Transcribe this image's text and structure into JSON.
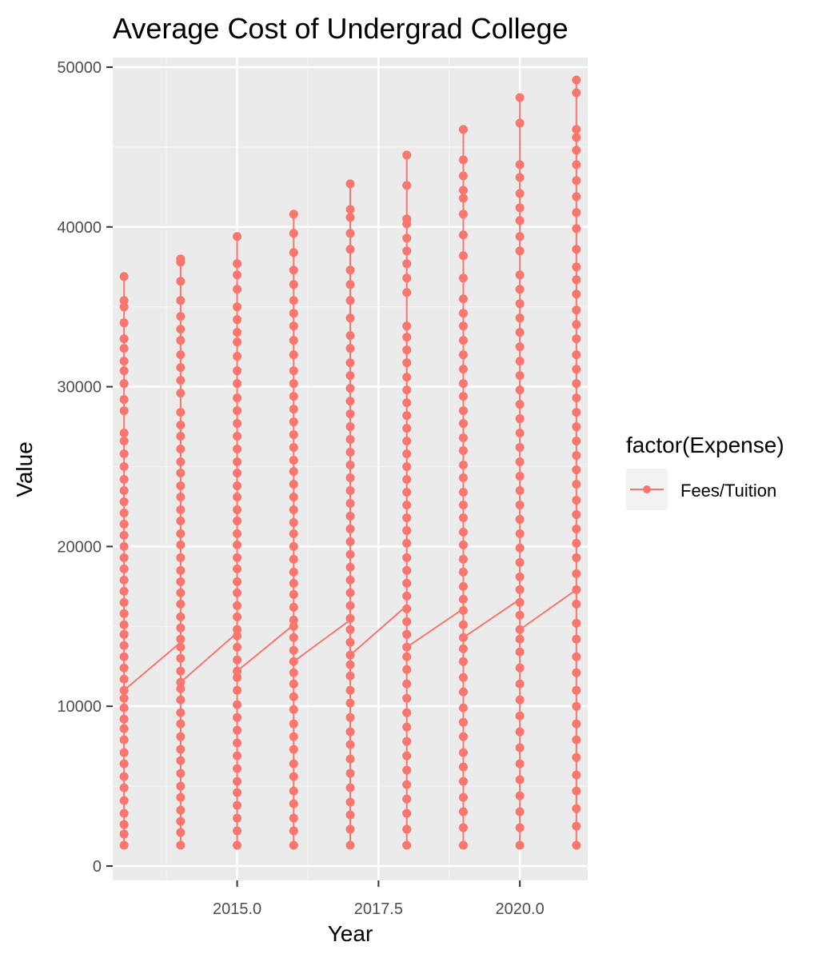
{
  "chart_data": {
    "type": "line",
    "title": "Average Cost of Undergrad College",
    "xlabel": "Year",
    "ylabel": "Value",
    "xlim": [
      2012.8,
      2021.2
    ],
    "ylim": [
      -900,
      50600
    ],
    "x_ticks": [
      2015.0,
      2017.5,
      2020.0
    ],
    "x_tick_labels": [
      "2015.0",
      "2017.5",
      "2020.0"
    ],
    "y_ticks": [
      0,
      10000,
      20000,
      30000,
      40000,
      50000
    ],
    "y_tick_labels": [
      "0",
      "10000",
      "20000",
      "30000",
      "40000",
      "50000"
    ],
    "grid": true,
    "legend": {
      "title": "factor(Expense)",
      "position": "right"
    },
    "series": [
      {
        "name": "Fees/Tuition",
        "color": "#F8766D",
        "x": [
          2013,
          2014,
          2015,
          2016,
          2017,
          2018,
          2019,
          2020,
          2021
        ],
        "min": [
          1300,
          1300,
          1300,
          1300,
          1300,
          1300,
          1300,
          1300,
          1300
        ],
        "max": [
          36900,
          38000,
          39400,
          40800,
          42700,
          44500,
          46100,
          48100,
          49200
        ],
        "connector_start": [
          11000,
          11500,
          12200,
          12800,
          13200,
          13700,
          14300,
          14800,
          17300
        ],
        "connector_end": [
          14000,
          14600,
          15100,
          15400,
          16300,
          16100,
          16700,
          17300,
          17300
        ],
        "points": [
          [
            1300,
            2000,
            2600,
            3300,
            4100,
            4900,
            5600,
            6400,
            7100,
            7900,
            8600,
            9200,
            9900,
            10500,
            11000,
            11700,
            12400,
            13100,
            13800,
            14500,
            15100,
            15800,
            16500,
            17200,
            17900,
            18600,
            19300,
            20000,
            20700,
            21400,
            22100,
            22800,
            23500,
            24200,
            25000,
            25800,
            26600,
            27100,
            28500,
            29200,
            30200,
            31000,
            31600,
            32400,
            33000,
            34000,
            35000,
            35400,
            36900
          ],
          [
            1300,
            2100,
            2800,
            3500,
            4300,
            5000,
            5800,
            6600,
            7300,
            8100,
            8900,
            9600,
            10400,
            11100,
            11500,
            12200,
            13000,
            13700,
            14200,
            14900,
            15600,
            16400,
            17100,
            17800,
            18500,
            19300,
            20100,
            20800,
            21600,
            22300,
            23100,
            23800,
            24600,
            25300,
            26100,
            26900,
            27600,
            28400,
            29600,
            30400,
            31200,
            32000,
            32900,
            33600,
            34400,
            35400,
            36600,
            37800,
            38000
          ],
          [
            1300,
            2200,
            3000,
            3800,
            4600,
            5300,
            6100,
            6900,
            7700,
            8500,
            9300,
            10100,
            11000,
            11800,
            12200,
            12900,
            13700,
            14400,
            14800,
            15600,
            16300,
            17100,
            17800,
            18600,
            19300,
            20100,
            20800,
            21600,
            22300,
            23100,
            23800,
            24600,
            25300,
            26100,
            26900,
            27700,
            28500,
            29300,
            30200,
            31000,
            31900,
            32800,
            33400,
            34200,
            35000,
            36100,
            37000,
            37700,
            39400
          ],
          [
            1300,
            2200,
            3000,
            3900,
            4700,
            5600,
            6400,
            7300,
            8100,
            8900,
            9800,
            10600,
            11400,
            12100,
            12800,
            13500,
            14300,
            15000,
            15400,
            16200,
            17000,
            17700,
            18400,
            19200,
            20000,
            20800,
            21500,
            22300,
            23100,
            23900,
            24700,
            25400,
            26200,
            27000,
            27800,
            28600,
            29400,
            30200,
            31000,
            32000,
            32900,
            33800,
            34600,
            35400,
            36400,
            37300,
            38400,
            39600,
            40800
          ],
          [
            1300,
            2300,
            3200,
            4000,
            4900,
            5800,
            6700,
            7600,
            8400,
            9300,
            10200,
            11000,
            11900,
            12600,
            13200,
            14000,
            14800,
            15500,
            16300,
            17100,
            17900,
            18700,
            19500,
            20300,
            21100,
            21900,
            22700,
            23500,
            24300,
            25100,
            25900,
            26700,
            27500,
            28300,
            29100,
            29900,
            30700,
            31500,
            32400,
            33200,
            34300,
            35400,
            36400,
            37300,
            38600,
            39600,
            40600,
            41100,
            42700
          ],
          [
            1300,
            2300,
            3300,
            4200,
            5100,
            6000,
            6900,
            7800,
            8700,
            9600,
            10500,
            11400,
            12300,
            13100,
            13700,
            14500,
            15300,
            16100,
            16900,
            17700,
            18500,
            19300,
            20200,
            21000,
            21800,
            22600,
            23400,
            24200,
            25000,
            25800,
            26600,
            27400,
            28200,
            29000,
            29800,
            30600,
            31500,
            32300,
            33100,
            33800,
            35900,
            36800,
            37700,
            38500,
            39300,
            40200,
            40500,
            42600,
            44500
          ],
          [
            1300,
            2400,
            3400,
            4300,
            5300,
            6200,
            7100,
            8100,
            9000,
            9900,
            10900,
            11800,
            12800,
            13600,
            14300,
            15100,
            16000,
            16700,
            17500,
            18400,
            19200,
            20100,
            20900,
            21800,
            22600,
            23400,
            24300,
            25100,
            26000,
            26800,
            27700,
            28500,
            29400,
            30200,
            31100,
            32000,
            32900,
            33800,
            34600,
            35500,
            36800,
            38200,
            39500,
            40800,
            41800,
            42300,
            43200,
            44200,
            46100
          ],
          [
            1300,
            2400,
            3400,
            4400,
            5400,
            6400,
            7400,
            8400,
            9400,
            10400,
            11400,
            12400,
            13400,
            14200,
            14800,
            15700,
            16500,
            17300,
            18100,
            19000,
            19900,
            20800,
            21700,
            22600,
            23500,
            24400,
            25300,
            26200,
            27100,
            28000,
            28900,
            29800,
            30700,
            31600,
            32500,
            33400,
            34300,
            35200,
            36100,
            37000,
            38500,
            39400,
            40400,
            41200,
            42100,
            43100,
            43900,
            46500,
            48100
          ],
          [
            1300,
            2500,
            3600,
            4700,
            5700,
            6800,
            7900,
            8900,
            10000,
            11000,
            12100,
            13100,
            14200,
            15200,
            16400,
            17300,
            18300,
            19300,
            20200,
            21100,
            22000,
            22900,
            23900,
            24800,
            25700,
            26600,
            27500,
            28400,
            29300,
            30200,
            31100,
            32000,
            33000,
            33900,
            34800,
            35800,
            36700,
            37500,
            38600,
            39900,
            40900,
            41900,
            42900,
            43900,
            44800,
            45600,
            46100,
            48400,
            49200
          ]
        ]
      }
    ]
  }
}
